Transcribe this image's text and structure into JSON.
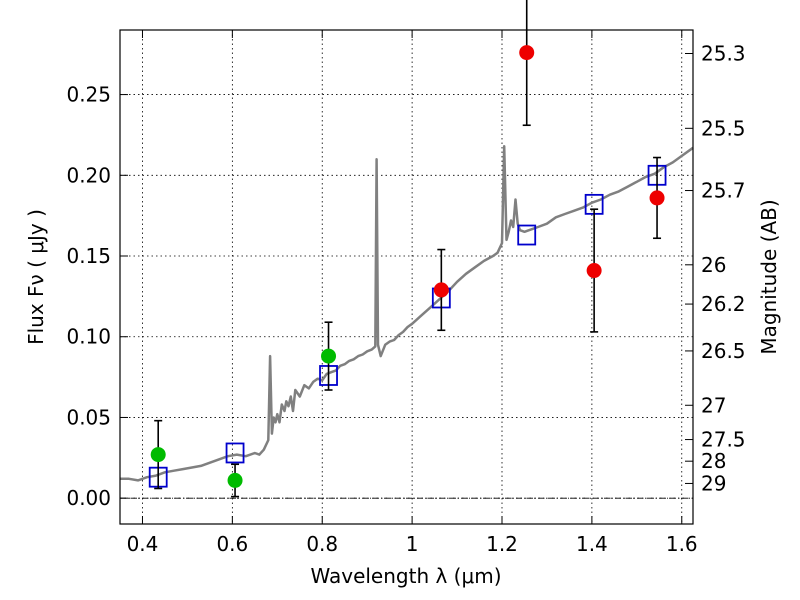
{
  "chart_data": {
    "type": "scatter",
    "xlabel": "Wavelength  λ (μm)",
    "ylabel": "Flux  Fν  ( μJy )",
    "y2label": "Magnitude (AB)",
    "xlim": [
      0.35,
      1.625
    ],
    "ylim": [
      -0.016,
      0.29
    ],
    "grid": true,
    "x_ticks": [
      0.4,
      0.6,
      0.8,
      1.0,
      1.2,
      1.4,
      1.6
    ],
    "x_tick_labels": [
      "0.4",
      "0.6",
      "0.8",
      "1",
      "1.2",
      "1.4",
      "1.6"
    ],
    "y_ticks": [
      0.0,
      0.05,
      0.1,
      0.15,
      0.2,
      0.25
    ],
    "y_tick_labels": [
      "0.00",
      "0.05",
      "0.10",
      "0.15",
      "0.20",
      "0.25"
    ],
    "y2_ticks": [
      {
        "label": "25.3",
        "value": 25.3
      },
      {
        "label": "25.5",
        "value": 25.5
      },
      {
        "label": "25.7",
        "value": 25.7
      },
      {
        "label": "26",
        "value": 26.0
      },
      {
        "label": "26.2",
        "value": 26.2
      },
      {
        "label": "26.5",
        "value": 26.5
      },
      {
        "label": "27",
        "value": 27.0
      },
      {
        "label": "27.5",
        "value": 27.5
      },
      {
        "label": "28",
        "value": 28.0
      },
      {
        "label": "29",
        "value": 29.0
      }
    ],
    "zero_line": {
      "y": 0.0,
      "color": "#000000"
    },
    "series": [
      {
        "kind": "line",
        "color": "#808080",
        "points": [
          [
            0.35,
            0.012
          ],
          [
            0.37,
            0.012
          ],
          [
            0.39,
            0.011
          ],
          [
            0.41,
            0.013
          ],
          [
            0.43,
            0.014
          ],
          [
            0.45,
            0.016
          ],
          [
            0.47,
            0.017
          ],
          [
            0.49,
            0.018
          ],
          [
            0.51,
            0.019
          ],
          [
            0.53,
            0.02
          ],
          [
            0.55,
            0.022
          ],
          [
            0.57,
            0.024
          ],
          [
            0.59,
            0.026
          ],
          [
            0.61,
            0.027
          ],
          [
            0.63,
            0.026
          ],
          [
            0.65,
            0.028
          ],
          [
            0.66,
            0.027
          ],
          [
            0.67,
            0.03
          ],
          [
            0.68,
            0.036
          ],
          [
            0.684,
            0.088
          ],
          [
            0.688,
            0.04
          ],
          [
            0.692,
            0.05
          ],
          [
            0.696,
            0.047
          ],
          [
            0.7,
            0.052
          ],
          [
            0.705,
            0.047
          ],
          [
            0.71,
            0.058
          ],
          [
            0.716,
            0.054
          ],
          [
            0.72,
            0.06
          ],
          [
            0.725,
            0.057
          ],
          [
            0.73,
            0.063
          ],
          [
            0.735,
            0.054
          ],
          [
            0.74,
            0.067
          ],
          [
            0.75,
            0.063
          ],
          [
            0.76,
            0.07
          ],
          [
            0.77,
            0.068
          ],
          [
            0.78,
            0.072
          ],
          [
            0.79,
            0.074
          ],
          [
            0.8,
            0.073
          ],
          [
            0.81,
            0.077
          ],
          [
            0.82,
            0.078
          ],
          [
            0.83,
            0.079
          ],
          [
            0.84,
            0.082
          ],
          [
            0.85,
            0.083
          ],
          [
            0.86,
            0.085
          ],
          [
            0.87,
            0.086
          ],
          [
            0.88,
            0.088
          ],
          [
            0.89,
            0.089
          ],
          [
            0.9,
            0.091
          ],
          [
            0.91,
            0.092
          ],
          [
            0.918,
            0.094
          ],
          [
            0.921,
            0.21
          ],
          [
            0.924,
            0.095
          ],
          [
            0.93,
            0.088
          ],
          [
            0.94,
            0.095
          ],
          [
            0.95,
            0.097
          ],
          [
            0.96,
            0.098
          ],
          [
            0.97,
            0.101
          ],
          [
            0.98,
            0.103
          ],
          [
            0.99,
            0.106
          ],
          [
            1.0,
            0.108
          ],
          [
            1.02,
            0.113
          ],
          [
            1.04,
            0.118
          ],
          [
            1.06,
            0.123
          ],
          [
            1.08,
            0.128
          ],
          [
            1.1,
            0.134
          ],
          [
            1.12,
            0.139
          ],
          [
            1.14,
            0.143
          ],
          [
            1.16,
            0.147
          ],
          [
            1.18,
            0.15
          ],
          [
            1.19,
            0.152
          ],
          [
            1.2,
            0.158
          ],
          [
            1.205,
            0.218
          ],
          [
            1.21,
            0.16
          ],
          [
            1.215,
            0.165
          ],
          [
            1.22,
            0.172
          ],
          [
            1.225,
            0.168
          ],
          [
            1.23,
            0.185
          ],
          [
            1.235,
            0.17
          ],
          [
            1.24,
            0.166
          ],
          [
            1.25,
            0.165
          ],
          [
            1.26,
            0.166
          ],
          [
            1.28,
            0.168
          ],
          [
            1.3,
            0.17
          ],
          [
            1.32,
            0.174
          ],
          [
            1.34,
            0.176
          ],
          [
            1.36,
            0.178
          ],
          [
            1.38,
            0.18
          ],
          [
            1.4,
            0.183
          ],
          [
            1.42,
            0.185
          ],
          [
            1.44,
            0.188
          ],
          [
            1.46,
            0.19
          ],
          [
            1.48,
            0.193
          ],
          [
            1.5,
            0.196
          ],
          [
            1.52,
            0.199
          ],
          [
            1.54,
            0.201
          ],
          [
            1.56,
            0.205
          ],
          [
            1.58,
            0.208
          ],
          [
            1.6,
            0.212
          ],
          [
            1.625,
            0.217
          ]
        ]
      },
      {
        "kind": "open-square",
        "color": "#0000cc",
        "points": [
          {
            "x": 0.435,
            "y": 0.013
          },
          {
            "x": 0.606,
            "y": 0.028
          },
          {
            "x": 0.814,
            "y": 0.076
          },
          {
            "x": 1.065,
            "y": 0.124
          },
          {
            "x": 1.255,
            "y": 0.163
          },
          {
            "x": 1.405,
            "y": 0.182
          },
          {
            "x": 1.545,
            "y": 0.2
          }
        ]
      },
      {
        "kind": "filled-circle",
        "color": "#00bb00",
        "points": [
          {
            "x": 0.435,
            "y": 0.027,
            "err": 0.021
          },
          {
            "x": 0.606,
            "y": 0.011,
            "err": 0.01
          },
          {
            "x": 0.814,
            "y": 0.088,
            "err": 0.021
          }
        ]
      },
      {
        "kind": "filled-circle",
        "color": "#ee0000",
        "points": [
          {
            "x": 1.065,
            "y": 0.129,
            "err": 0.025
          },
          {
            "x": 1.255,
            "y": 0.276,
            "err": 0.045
          },
          {
            "x": 1.405,
            "y": 0.141,
            "err": 0.038
          },
          {
            "x": 1.545,
            "y": 0.186,
            "err": 0.025
          }
        ]
      }
    ]
  }
}
